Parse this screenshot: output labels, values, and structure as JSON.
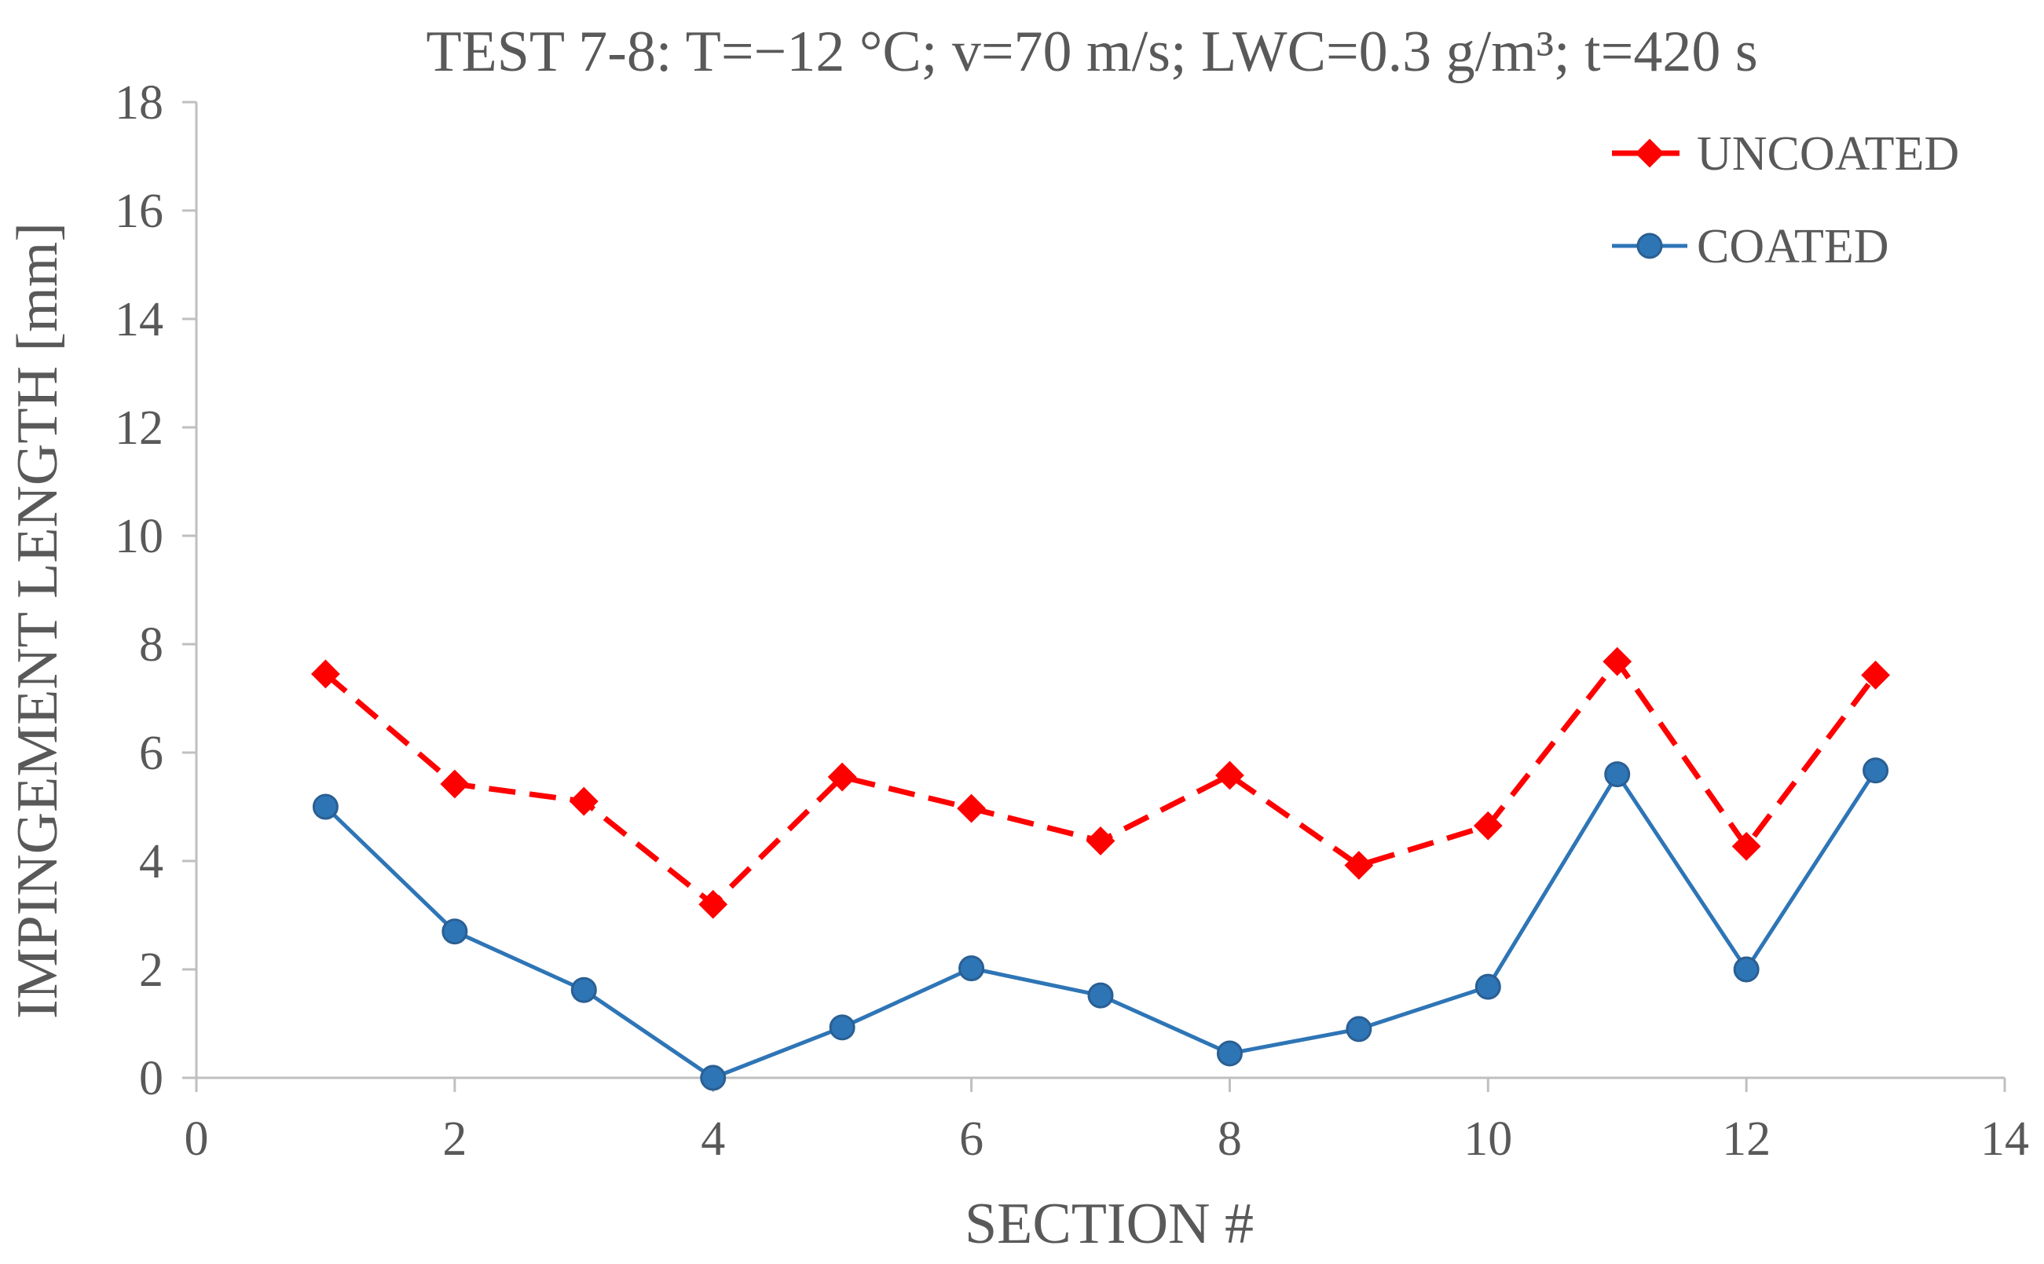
{
  "chart_data": {
    "type": "line",
    "title": "TEST 7-8: T=−12 °C; v=70 m/s; LWC=0.3 g/m³; t=420 s",
    "xlabel": "SECTION #",
    "ylabel": "IMPINGEMENT LENGTH [mm]",
    "xlim": [
      0,
      14
    ],
    "ylim": [
      0,
      18
    ],
    "x_ticks": [
      "0",
      "2",
      "4",
      "6",
      "8",
      "10",
      "12",
      "14"
    ],
    "y_ticks": [
      "0",
      "2",
      "4",
      "6",
      "8",
      "10",
      "12",
      "14",
      "16",
      "18"
    ],
    "grid": false,
    "legend_position": "top-right",
    "x": [
      1,
      2,
      3,
      4,
      5,
      6,
      7,
      8,
      9,
      10,
      11,
      12,
      13
    ],
    "series": [
      {
        "name": "UNCOATED",
        "color": "#ff0000",
        "line_style": "dashed",
        "marker": "diamond",
        "values": [
          7.45,
          5.42,
          5.1,
          3.2,
          5.55,
          4.97,
          4.37,
          5.58,
          3.92,
          4.65,
          7.68,
          4.27,
          7.43
        ]
      },
      {
        "name": "COATED",
        "color": "#2e75b6",
        "line_style": "solid",
        "marker": "circle",
        "values": [
          5.0,
          2.7,
          1.62,
          0.0,
          0.93,
          2.02,
          1.52,
          0.45,
          0.9,
          1.68,
          5.6,
          2.0,
          5.67
        ]
      }
    ],
    "axis_color": "#bfbfbf",
    "text_color": "#595959"
  }
}
